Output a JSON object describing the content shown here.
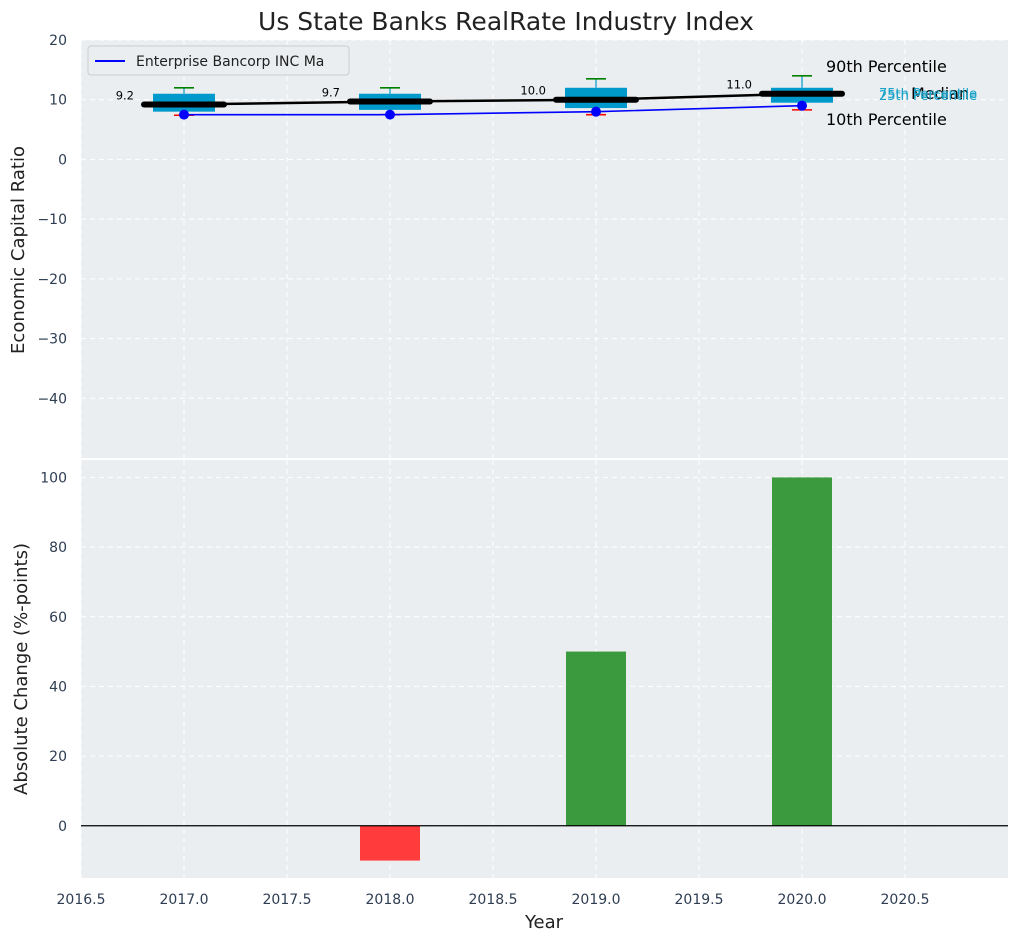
{
  "chart_data": {
    "type": "bar",
    "title": "Us State Banks RealRate Industry Index",
    "xlabel": "Year",
    "x_ticks": [
      "2016.5",
      "2017.0",
      "2017.5",
      "2018.0",
      "2018.5",
      "2019.0",
      "2019.5",
      "2020.0",
      "2020.5"
    ],
    "xlim": [
      2016.5,
      2021.0
    ],
    "grid": true,
    "top_panel": {
      "type": "box+line",
      "ylabel": "Economic Capital Ratio",
      "ylim": [
        -50,
        20
      ],
      "y_ticks": [
        "20",
        "10",
        "0",
        "−10",
        "−20",
        "−30",
        "−40"
      ],
      "legend": {
        "position": "top-left",
        "entries": [
          "Enterprise Bancorp INC Ma"
        ]
      },
      "years": [
        2017,
        2018,
        2019,
        2020
      ],
      "percentile_10": [
        7.4,
        7.5,
        7.5,
        8.3
      ],
      "percentile_25": [
        8.0,
        8.3,
        8.6,
        9.5
      ],
      "median": [
        9.2,
        9.7,
        10.0,
        11.0
      ],
      "percentile_75": [
        11.0,
        11.0,
        12.0,
        12.0
      ],
      "percentile_90": [
        12.0,
        12.0,
        13.5,
        14.0
      ],
      "median_labels": [
        "9.2",
        "9.7",
        "10.0",
        "11.0"
      ],
      "company_series": {
        "name": "Enterprise Bancorp INC Ma",
        "values": [
          7.5,
          7.5,
          8.0,
          9.0
        ]
      },
      "annotations": {
        "p90": "90th Percentile",
        "median": "Median",
        "p10": "10th Percentile",
        "p75": "75th Percentile",
        "p25": "25th Percentile"
      }
    },
    "bottom_panel": {
      "type": "bar",
      "ylabel": "Absolute Change (%-points)",
      "ylim": [
        -15,
        105
      ],
      "y_ticks": [
        "100",
        "80",
        "60",
        "40",
        "20",
        "0"
      ],
      "categories": [
        2017,
        2018,
        2019,
        2020
      ],
      "values": [
        0,
        -10,
        50,
        100
      ]
    },
    "colors": {
      "background": "#eaeef0",
      "box": "#0099cc",
      "median_line": "#000000",
      "company_line": "#0000ff",
      "whisker_top": "#008000",
      "whisker_bottom": "#ff0000",
      "bar_positive": "#3a9a3d",
      "bar_negative": "#ff3b3b",
      "quartile_label": "#17a2c8"
    }
  }
}
